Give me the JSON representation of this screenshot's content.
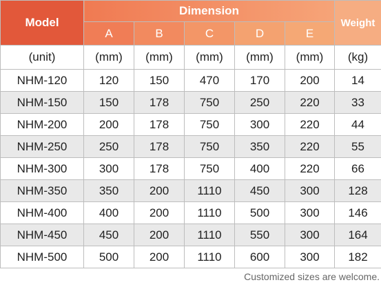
{
  "header": {
    "model": "Model",
    "dimension": "Dimension",
    "weight": "Weight",
    "columns": [
      "A",
      "B",
      "C",
      "D",
      "E"
    ]
  },
  "units": {
    "model": "(unit)",
    "a": "(mm)",
    "b": "(mm)",
    "c": "(mm)",
    "d": "(mm)",
    "e": "(mm)",
    "weight": "(kg)"
  },
  "rows": [
    {
      "model": "NHM-120",
      "a": "120",
      "b": "150",
      "c": "470",
      "d": "170",
      "e": "200",
      "weight": "14"
    },
    {
      "model": "NHM-150",
      "a": "150",
      "b": "178",
      "c": "750",
      "d": "250",
      "e": "220",
      "weight": "33"
    },
    {
      "model": "NHM-200",
      "a": "200",
      "b": "178",
      "c": "750",
      "d": "300",
      "e": "220",
      "weight": "44"
    },
    {
      "model": "NHM-250",
      "a": "250",
      "b": "178",
      "c": "750",
      "d": "350",
      "e": "220",
      "weight": "55"
    },
    {
      "model": "NHM-300",
      "a": "300",
      "b": "178",
      "c": "750",
      "d": "400",
      "e": "220",
      "weight": "66"
    },
    {
      "model": "NHM-350",
      "a": "350",
      "b": "200",
      "c": "1110",
      "d": "450",
      "e": "300",
      "weight": "128"
    },
    {
      "model": "NHM-400",
      "a": "400",
      "b": "200",
      "c": "1110",
      "d": "500",
      "e": "300",
      "weight": "146"
    },
    {
      "model": "NHM-450",
      "a": "450",
      "b": "200",
      "c": "1110",
      "d": "550",
      "e": "300",
      "weight": "164"
    },
    {
      "model": "NHM-500",
      "a": "500",
      "b": "200",
      "c": "1110",
      "d": "600",
      "e": "300",
      "weight": "182"
    }
  ],
  "footnote": "Customized sizes are welcome.",
  "colors": {
    "model_header": "#e2583a",
    "dimension_header_start": "#f07a52",
    "dimension_header_end": "#f6a478",
    "weight_header": "#f6ad82",
    "alt_row": "#e9e9e9",
    "border": "#bdbdbd"
  }
}
